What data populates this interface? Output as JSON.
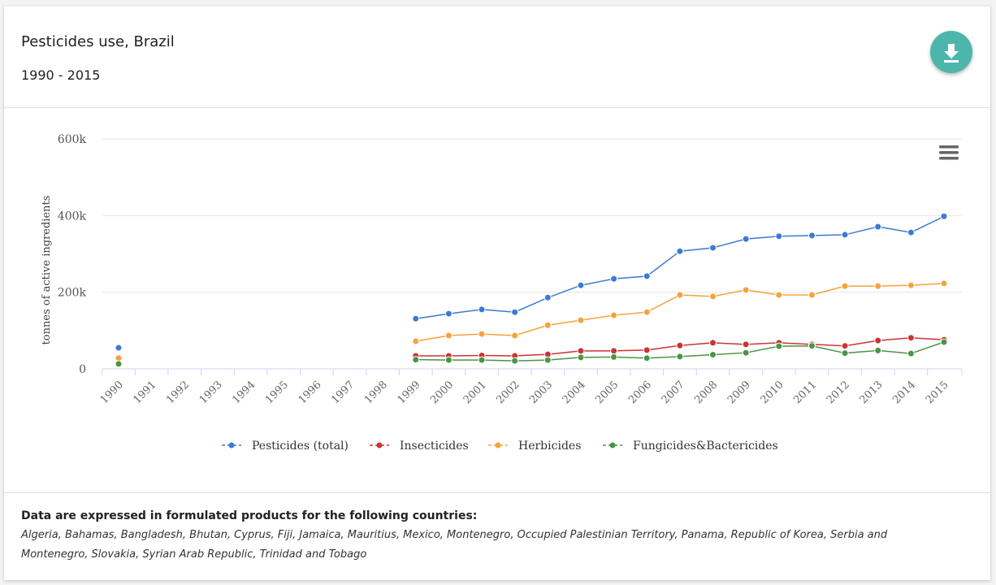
{
  "header": {
    "title": "Pesticides use, Brazil",
    "subtitle": "1990 - 2015"
  },
  "footer": {
    "heading": "Data are expressed in formulated products for the following countries:",
    "countries": "Algeria, Bahamas, Bangladesh, Bhutan, Cyprus, Fiji, Jamaica, Mauritius, Mexico, Montenegro, Occupied Palestinian Territory, Panama, Republic of Korea, Serbia and Montenegro, Slovakia, Syrian Arab Republic, Trinidad and Tobago"
  },
  "chart_data": {
    "type": "line",
    "ylabel": "tonnes of active ingredients",
    "ylim": [
      0,
      600000
    ],
    "yticks": [
      {
        "v": 0,
        "label": "0"
      },
      {
        "v": 200000,
        "label": "200k"
      },
      {
        "v": 400000,
        "label": "400k"
      },
      {
        "v": 600000,
        "label": "600k"
      }
    ],
    "x": [
      "1990",
      "1991",
      "1992",
      "1993",
      "1994",
      "1995",
      "1996",
      "1997",
      "1998",
      "1999",
      "2000",
      "2001",
      "2002",
      "2003",
      "2004",
      "2005",
      "2006",
      "2007",
      "2008",
      "2009",
      "2010",
      "2011",
      "2012",
      "2013",
      "2014",
      "2015"
    ],
    "legend_position": "bottom",
    "series": [
      {
        "name": "Pesticides (total)",
        "color": "#3a7bd5",
        "values": [
          55000,
          null,
          null,
          null,
          null,
          null,
          null,
          null,
          null,
          131000,
          144000,
          155000,
          148000,
          186000,
          218000,
          235000,
          242000,
          307000,
          316000,
          339000,
          346000,
          348000,
          350000,
          371000,
          356000,
          398000
        ]
      },
      {
        "name": "Insecticides",
        "color": "#cc3333",
        "values": [
          null,
          null,
          null,
          null,
          null,
          null,
          null,
          null,
          null,
          34000,
          34000,
          35000,
          34000,
          38000,
          47000,
          47000,
          49000,
          61000,
          68000,
          64000,
          68000,
          64000,
          60000,
          74000,
          81000,
          76000
        ]
      },
      {
        "name": "Herbicides",
        "color": "#f5a33a",
        "values": [
          28000,
          null,
          null,
          null,
          null,
          null,
          null,
          null,
          null,
          72000,
          87000,
          91000,
          87000,
          114000,
          127000,
          140000,
          148000,
          193000,
          189000,
          206000,
          193000,
          193000,
          216000,
          216000,
          218000,
          223000
        ]
      },
      {
        "name": "Fungicides&Bactericides",
        "color": "#4a9445",
        "values": [
          13000,
          null,
          null,
          null,
          null,
          null,
          null,
          null,
          null,
          24000,
          23000,
          23000,
          21000,
          23000,
          30000,
          31000,
          28000,
          32000,
          37000,
          42000,
          59000,
          60000,
          41000,
          48000,
          40000,
          70000
        ]
      }
    ]
  }
}
